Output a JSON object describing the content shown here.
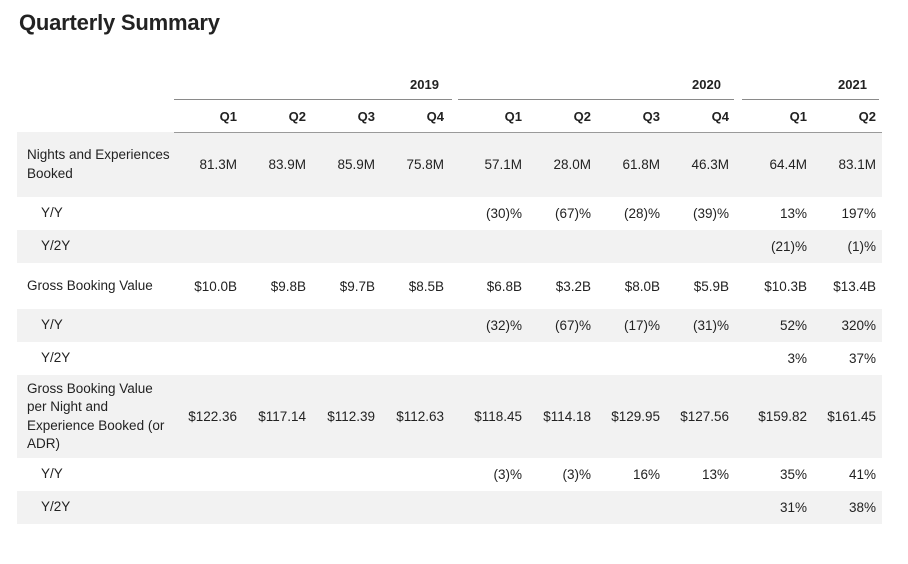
{
  "title": "Quarterly Summary",
  "years": [
    "2019",
    "2020",
    "2021"
  ],
  "quarters": [
    "Q1",
    "Q2",
    "Q3",
    "Q4",
    "Q1",
    "Q2",
    "Q3",
    "Q4",
    "Q1",
    "Q2"
  ],
  "rows": [
    {
      "label": "Nights and Experiences Booked",
      "values": [
        "81.3M",
        "83.9M",
        "85.9M",
        "75.8M",
        "57.1M",
        "28.0M",
        "61.8M",
        "46.3M",
        "64.4M",
        "83.1M"
      ]
    },
    {
      "label": "Y/Y",
      "values": [
        "",
        "",
        "",
        "",
        "(30)%",
        "(67)%",
        "(28)%",
        "(39)%",
        "13%",
        "197%"
      ]
    },
    {
      "label": "Y/2Y",
      "values": [
        "",
        "",
        "",
        "",
        "",
        "",
        "",
        "",
        "(21)%",
        "(1)%"
      ]
    },
    {
      "label": "Gross Booking Value",
      "values": [
        "$10.0B",
        "$9.8B",
        "$9.7B",
        "$8.5B",
        "$6.8B",
        "$3.2B",
        "$8.0B",
        "$5.9B",
        "$10.3B",
        "$13.4B"
      ]
    },
    {
      "label": "Y/Y",
      "values": [
        "",
        "",
        "",
        "",
        "(32)%",
        "(67)%",
        "(17)%",
        "(31)%",
        "52%",
        "320%"
      ]
    },
    {
      "label": "Y/2Y",
      "values": [
        "",
        "",
        "",
        "",
        "",
        "",
        "",
        "",
        "3%",
        "37%"
      ]
    },
    {
      "label": "Gross Booking Value per Night and Experience Booked (or ADR)",
      "values": [
        "$122.36",
        "$117.14",
        "$112.39",
        "$112.63",
        "$118.45",
        "$114.18",
        "$129.95",
        "$127.56",
        "$159.82",
        "$161.45"
      ]
    },
    {
      "label": "Y/Y",
      "values": [
        "",
        "",
        "",
        "",
        "(3)%",
        "(3)%",
        "16%",
        "13%",
        "35%",
        "41%"
      ]
    },
    {
      "label": "Y/2Y",
      "values": [
        "",
        "",
        "",
        "",
        "",
        "",
        "",
        "",
        "31%",
        "38%"
      ]
    }
  ]
}
